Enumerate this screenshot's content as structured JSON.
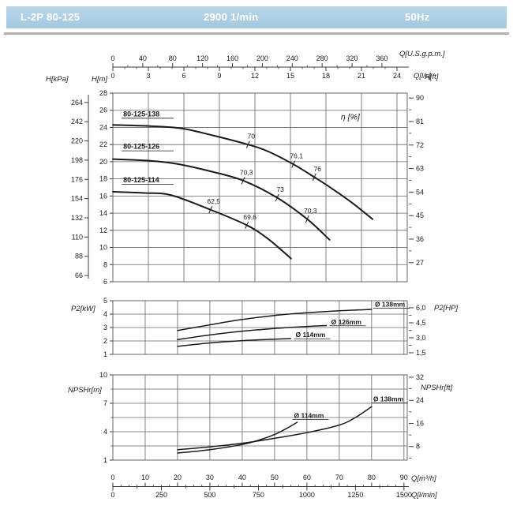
{
  "header": {
    "model": "L-2P 80-125",
    "speed": "2900 1/min",
    "frequency": "50Hz"
  },
  "colors": {
    "header_bg": "#a9cde4",
    "header_text": "#ffffff",
    "divider": "#b2b2b2",
    "curve": "#1b1b1b",
    "grid": "#646464",
    "axis": "#3c3c3c",
    "text": "#1b1b1b"
  },
  "flow_axes": {
    "top_gpm": {
      "title": "Q[U.S.g.p.m.]",
      "ticks": [
        0,
        40,
        80,
        120,
        160,
        200,
        240,
        280,
        320,
        360
      ],
      "minor_step": 20
    },
    "top_ls": {
      "title": "Q[l/s]",
      "ticks": [
        0,
        3,
        6,
        9,
        12,
        15,
        18,
        21,
        24
      ],
      "minor_step": 1
    },
    "bottom_m3h": {
      "title": "Q[m³/h]",
      "ticks": [
        0,
        10,
        20,
        30,
        40,
        50,
        60,
        70,
        80,
        90
      ],
      "minor_step": 2.5
    },
    "bottom_lmin": {
      "title": "Q[l/min]",
      "ticks": [
        0,
        250,
        500,
        750,
        1000,
        1250,
        1500
      ],
      "minor_step": 125
    }
  },
  "chart_data": [
    {
      "id": "head",
      "type": "line",
      "xlabel": "Q[m³/h]",
      "ylabel": "H[m]",
      "xlim": [
        0,
        91
      ],
      "ylim": [
        6,
        28
      ],
      "grid": true,
      "y_left": {
        "title": "H[m]",
        "ticks": [
          6,
          8,
          10,
          12,
          14,
          16,
          18,
          20,
          22,
          24,
          26,
          28
        ]
      },
      "y_kpa": {
        "title": "H[kPa]",
        "ticks": [
          66,
          88,
          110,
          132,
          154,
          176,
          198,
          220,
          242,
          264
        ]
      },
      "y_right": {
        "title": "H[ft]",
        "ticks": [
          27,
          36,
          45,
          54,
          63,
          72,
          81,
          90
        ]
      },
      "eta_label": {
        "text": "η [%]",
        "at": [
          70.5,
          24.9
        ]
      },
      "series": [
        {
          "name": "80-125-138",
          "label_at": [
            3.2,
            25.3
          ],
          "points": [
            [
              0,
              24.3
            ],
            [
              12,
              24.15
            ],
            [
              21,
              23.9
            ],
            [
              30.6,
              23.1
            ],
            [
              41.8,
              22.0
            ],
            [
              48,
              21.2
            ],
            [
              55.8,
              19.7
            ],
            [
              62.3,
              18.2
            ],
            [
              68,
              16.8
            ],
            [
              74,
              15.2
            ],
            [
              80.3,
              13.3
            ]
          ],
          "marks": [
            {
              "at": [
                41.8,
                22.0
              ],
              "label": "70"
            },
            {
              "at": [
                55.8,
                19.7
              ],
              "label": "76,1"
            },
            {
              "at": [
                62.3,
                18.2
              ],
              "label": "76"
            }
          ]
        },
        {
          "name": "80-125-126",
          "label_at": [
            3.2,
            21.5
          ],
          "points": [
            [
              0,
              20.3
            ],
            [
              12,
              20.1
            ],
            [
              19.8,
              19.75
            ],
            [
              30,
              18.9
            ],
            [
              40.3,
              17.8
            ],
            [
              50.8,
              15.8
            ],
            [
              60.1,
              13.3
            ],
            [
              67,
              10.9
            ]
          ],
          "marks": [
            {
              "at": [
                40.3,
                17.8
              ],
              "label": "70,3"
            },
            {
              "at": [
                50.8,
                15.8
              ],
              "label": "73"
            },
            {
              "at": [
                60.1,
                13.3
              ],
              "label": "70,3"
            }
          ]
        },
        {
          "name": "80-125-114",
          "label_at": [
            3.2,
            17.6
          ],
          "points": [
            [
              0,
              16.5
            ],
            [
              10,
              16.35
            ],
            [
              18,
              16.1
            ],
            [
              30.2,
              14.4
            ],
            [
              41.4,
              12.6
            ],
            [
              48,
              11.0
            ],
            [
              55.1,
              8.7
            ]
          ],
          "marks": [
            {
              "at": [
                30.2,
                14.4
              ],
              "label": "62,5"
            },
            {
              "at": [
                41.4,
                12.6
              ],
              "label": "69,6"
            }
          ]
        }
      ]
    },
    {
      "id": "power",
      "type": "line",
      "xlabel": "Q[m³/h]",
      "ylabel": "P2[kW]",
      "xlim": [
        0,
        91
      ],
      "ylim": [
        1,
        5
      ],
      "grid": true,
      "y_left": {
        "title": "P2[kW]",
        "ticks": [
          1,
          2,
          3,
          4,
          5
        ]
      },
      "y_right": {
        "title": "P2[HP]",
        "tick_labels": [
          "1,5",
          "3,0",
          "4,5",
          "6,0"
        ],
        "tick_values": [
          1.5,
          3.0,
          4.5,
          6.0
        ],
        "minor_values": [
          2.25,
          3.75,
          5.25
        ]
      },
      "series": [
        {
          "name": "Ø 138mm",
          "label_at": [
            81,
            4.55
          ],
          "points": [
            [
              20,
              2.78
            ],
            [
              30,
              3.2
            ],
            [
              40,
              3.6
            ],
            [
              50,
              3.9
            ],
            [
              60,
              4.1
            ],
            [
              70,
              4.25
            ],
            [
              80,
              4.35
            ]
          ]
        },
        {
          "name": "Ø 126mm",
          "label_at": [
            67.5,
            3.25
          ],
          "points": [
            [
              20,
              2.1
            ],
            [
              30,
              2.45
            ],
            [
              40,
              2.73
            ],
            [
              50,
              2.93
            ],
            [
              60,
              3.08
            ],
            [
              66,
              3.15
            ]
          ]
        },
        {
          "name": "Ø 114mm",
          "label_at": [
            56.5,
            2.28
          ],
          "points": [
            [
              20,
              1.6
            ],
            [
              30,
              1.85
            ],
            [
              40,
              2.02
            ],
            [
              50,
              2.13
            ],
            [
              55,
              2.18
            ]
          ]
        }
      ]
    },
    {
      "id": "npsh",
      "type": "line",
      "xlabel": "Q[m³/h]",
      "ylabel": "NPSHr[m]",
      "xlim": [
        0,
        91
      ],
      "ylim": [
        1,
        10
      ],
      "grid": true,
      "y_left": {
        "title": "NPSHr[m]",
        "ticks": [
          1,
          4,
          7,
          10
        ],
        "minor_values": [
          2.5,
          5.5,
          8.5
        ]
      },
      "y_right": {
        "title": "NPSHr[ft]",
        "ticks": [
          8,
          16,
          24,
          32
        ],
        "minor_values": [
          4,
          12,
          20,
          28
        ]
      },
      "series": [
        {
          "name": "Ø 114mm",
          "label_at": [
            56,
            5.45
          ],
          "points": [
            [
              20,
              1.75
            ],
            [
              30,
              2.1
            ],
            [
              40,
              2.65
            ],
            [
              45,
              3.1
            ],
            [
              50,
              3.7
            ],
            [
              54,
              4.4
            ],
            [
              57,
              5.0
            ]
          ]
        },
        {
          "name": "Ø 138mm",
          "label_at": [
            80.5,
            7.2
          ],
          "points": [
            [
              20,
              2.1
            ],
            [
              30,
              2.4
            ],
            [
              40,
              2.78
            ],
            [
              50,
              3.3
            ],
            [
              60,
              3.9
            ],
            [
              70,
              4.7
            ],
            [
              75,
              5.5
            ],
            [
              80,
              6.65
            ]
          ]
        }
      ]
    }
  ]
}
